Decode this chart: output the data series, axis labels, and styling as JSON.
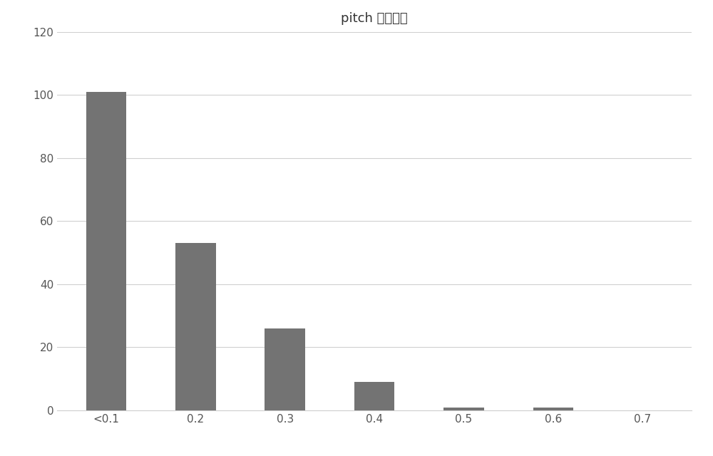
{
  "categories": [
    "<0.1",
    "0.2",
    "0.3",
    "0.4",
    "0.5",
    "0.6",
    "0.7"
  ],
  "values": [
    101,
    53,
    26,
    9,
    1,
    1,
    0
  ],
  "bar_color": "#737373",
  "title": "pitch 损失分布",
  "title_fontsize": 13,
  "ylim": [
    0,
    120
  ],
  "yticks": [
    0,
    20,
    40,
    60,
    80,
    100,
    120
  ],
  "background_color": "#ffffff",
  "grid_color": "#d0d0d0",
  "bar_width": 0.45,
  "tick_fontsize": 11
}
